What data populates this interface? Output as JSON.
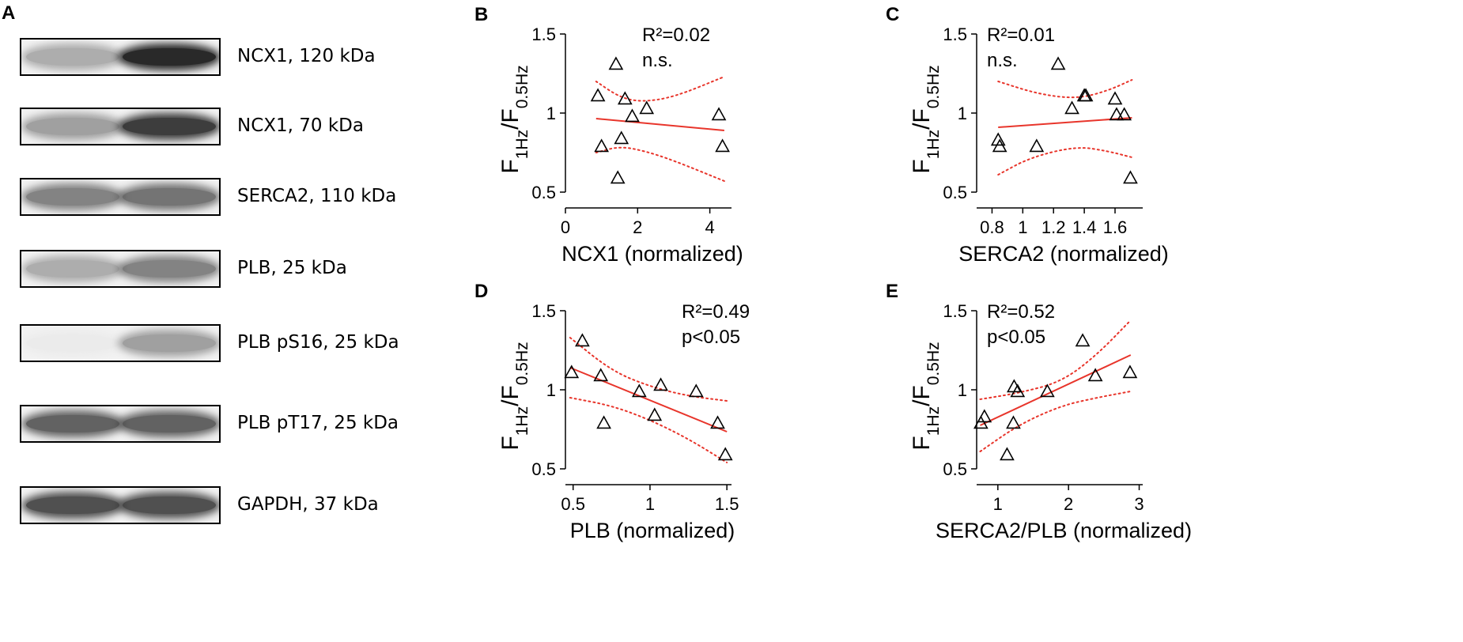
{
  "panel_a": {
    "letter": "A",
    "blots": [
      {
        "label": "NCX1, 120 kDa",
        "lane1_intensity": 0.55,
        "lane2_intensity": 0.95
      },
      {
        "label": "NCX1, 70 kDa",
        "lane1_intensity": 0.6,
        "lane2_intensity": 0.9
      },
      {
        "label": "SERCA2, 110 kDa",
        "lane1_intensity": 0.7,
        "lane2_intensity": 0.75
      },
      {
        "label": "PLB, 25 kDa",
        "lane1_intensity": 0.55,
        "lane2_intensity": 0.7
      },
      {
        "label": "PLB pS16, 25 kDa",
        "lane1_intensity": 0.08,
        "lane2_intensity": 0.6
      },
      {
        "label": "PLB pT17, 25 kDa",
        "lane1_intensity": 0.8,
        "lane2_intensity": 0.8
      },
      {
        "label": "GAPDH, 37 kDa",
        "lane1_intensity": 0.85,
        "lane2_intensity": 0.85
      }
    ]
  },
  "chart_data": [
    {
      "letter": "B",
      "type": "scatter",
      "ylabel_main": "F",
      "ylabel_sub1": "1Hz",
      "ylabel_mid": "/F",
      "ylabel_sub2": "0.5Hz",
      "xlabel": "NCX1 (normalized)",
      "xlim": [
        0,
        4.6
      ],
      "ylim": [
        0.5,
        1.5
      ],
      "xticks": [
        0,
        2,
        4
      ],
      "xtick_labels": [
        "0",
        "2",
        "4"
      ],
      "yticks": [
        0.5,
        1,
        1.5
      ],
      "ytick_labels": [
        "0.5",
        "1",
        "1.5"
      ],
      "stat_r2": "R²=0.02",
      "stat_p": "n.s.",
      "points": [
        [
          0.9,
          1.11
        ],
        [
          1.0,
          0.79
        ],
        [
          1.4,
          1.31
        ],
        [
          1.45,
          0.59
        ],
        [
          1.55,
          0.84
        ],
        [
          1.65,
          1.09
        ],
        [
          1.85,
          0.98
        ],
        [
          2.25,
          1.03
        ],
        [
          4.25,
          0.99
        ],
        [
          4.35,
          0.79
        ]
      ],
      "fit": [
        [
          0.85,
          0.965
        ],
        [
          4.4,
          0.89
        ]
      ],
      "ci_upper": [
        [
          0.85,
          1.2
        ],
        [
          1.5,
          1.1
        ],
        [
          2.1,
          1.07
        ],
        [
          3.0,
          1.1
        ],
        [
          4.4,
          1.23
        ]
      ],
      "ci_lower": [
        [
          0.85,
          0.75
        ],
        [
          1.5,
          0.79
        ],
        [
          2.2,
          0.76
        ],
        [
          3.0,
          0.7
        ],
        [
          4.4,
          0.57
        ]
      ]
    },
    {
      "letter": "C",
      "type": "scatter",
      "ylabel_main": "F",
      "ylabel_sub1": "1Hz",
      "ylabel_mid": "/F",
      "ylabel_sub2": "0.5Hz",
      "xlabel": "SERCA2 (normalized)",
      "xlim": [
        0.7,
        1.78
      ],
      "ylim": [
        0.5,
        1.5
      ],
      "xticks": [
        0.8,
        1.0,
        1.2,
        1.4,
        1.6
      ],
      "xtick_labels": [
        "0.8",
        "1",
        "1.2",
        "1.4",
        "1.6"
      ],
      "yticks": [
        0.5,
        1,
        1.5
      ],
      "ytick_labels": [
        "0.5",
        "1",
        "1.5"
      ],
      "stat_r2": "R²=0.01",
      "stat_p": "n.s.",
      "points": [
        [
          0.84,
          0.83
        ],
        [
          0.85,
          0.79
        ],
        [
          1.09,
          0.79
        ],
        [
          1.23,
          1.31
        ],
        [
          1.32,
          1.03
        ],
        [
          1.4,
          1.11
        ],
        [
          1.41,
          1.11
        ],
        [
          1.6,
          1.09
        ],
        [
          1.61,
          0.99
        ],
        [
          1.66,
          0.99
        ],
        [
          1.7,
          0.59
        ]
      ],
      "fit": [
        [
          0.84,
          0.91
        ],
        [
          1.71,
          0.97
        ]
      ],
      "ci_upper": [
        [
          0.84,
          1.2
        ],
        [
          1.1,
          1.12
        ],
        [
          1.35,
          1.09
        ],
        [
          1.55,
          1.14
        ],
        [
          1.71,
          1.21
        ]
      ],
      "ci_lower": [
        [
          0.84,
          0.61
        ],
        [
          1.05,
          0.72
        ],
        [
          1.35,
          0.79
        ],
        [
          1.55,
          0.76
        ],
        [
          1.71,
          0.72
        ]
      ]
    },
    {
      "letter": "D",
      "type": "scatter",
      "ylabel_main": "F",
      "ylabel_sub1": "1Hz",
      "ylabel_mid": "/F",
      "ylabel_sub2": "0.5Hz",
      "xlabel": "PLB (normalized)",
      "xlim": [
        0.45,
        1.53
      ],
      "ylim": [
        0.5,
        1.5
      ],
      "xticks": [
        0.5,
        1.0,
        1.5
      ],
      "xtick_labels": [
        "0.5",
        "1",
        "1.5"
      ],
      "yticks": [
        0.5,
        1,
        1.5
      ],
      "ytick_labels": [
        "0.5",
        "1",
        "1.5"
      ],
      "stat_r2": "R²=0.49",
      "stat_p": "p<0.05",
      "points": [
        [
          0.49,
          1.11
        ],
        [
          0.56,
          1.31
        ],
        [
          0.68,
          1.09
        ],
        [
          0.7,
          0.79
        ],
        [
          0.93,
          0.99
        ],
        [
          1.03,
          0.84
        ],
        [
          1.07,
          1.03
        ],
        [
          1.3,
          0.99
        ],
        [
          1.44,
          0.79
        ],
        [
          1.49,
          0.59
        ]
      ],
      "fit": [
        [
          0.48,
          1.14
        ],
        [
          1.5,
          0.735
        ]
      ],
      "ci_upper": [
        [
          0.48,
          1.33
        ],
        [
          0.75,
          1.12
        ],
        [
          1.0,
          1.02
        ],
        [
          1.25,
          0.96
        ],
        [
          1.5,
          0.93
        ]
      ],
      "ci_lower": [
        [
          0.48,
          0.95
        ],
        [
          0.75,
          0.9
        ],
        [
          1.0,
          0.81
        ],
        [
          1.25,
          0.69
        ],
        [
          1.5,
          0.54
        ]
      ]
    },
    {
      "letter": "E",
      "type": "scatter",
      "ylabel_main": "F",
      "ylabel_sub1": "1Hz",
      "ylabel_mid": "/F",
      "ylabel_sub2": "0.5Hz",
      "xlabel": "SERCA2/PLB (normalized)",
      "xlim": [
        0.7,
        3.05
      ],
      "ylim": [
        0.5,
        1.5
      ],
      "xticks": [
        1,
        2,
        3
      ],
      "xtick_labels": [
        "1",
        "2",
        "3"
      ],
      "yticks": [
        0.5,
        1,
        1.5
      ],
      "ytick_labels": [
        "0.5",
        "1",
        "1.5"
      ],
      "stat_r2": "R²=0.52",
      "stat_p": "p<0.05",
      "points": [
        [
          0.76,
          0.79
        ],
        [
          0.81,
          0.83
        ],
        [
          1.13,
          0.59
        ],
        [
          1.22,
          0.79
        ],
        [
          1.23,
          1.02
        ],
        [
          1.28,
          0.99
        ],
        [
          1.7,
          0.99
        ],
        [
          2.2,
          1.31
        ],
        [
          2.38,
          1.09
        ],
        [
          2.87,
          1.11
        ]
      ],
      "fit": [
        [
          0.75,
          0.775
        ],
        [
          2.88,
          1.22
        ]
      ],
      "ci_upper": [
        [
          0.75,
          0.94
        ],
        [
          1.3,
          0.98
        ],
        [
          1.9,
          1.05
        ],
        [
          2.4,
          1.22
        ],
        [
          2.88,
          1.44
        ]
      ],
      "ci_lower": [
        [
          0.75,
          0.61
        ],
        [
          1.3,
          0.78
        ],
        [
          1.9,
          0.9
        ],
        [
          2.4,
          0.95
        ],
        [
          2.88,
          0.99
        ]
      ]
    }
  ]
}
